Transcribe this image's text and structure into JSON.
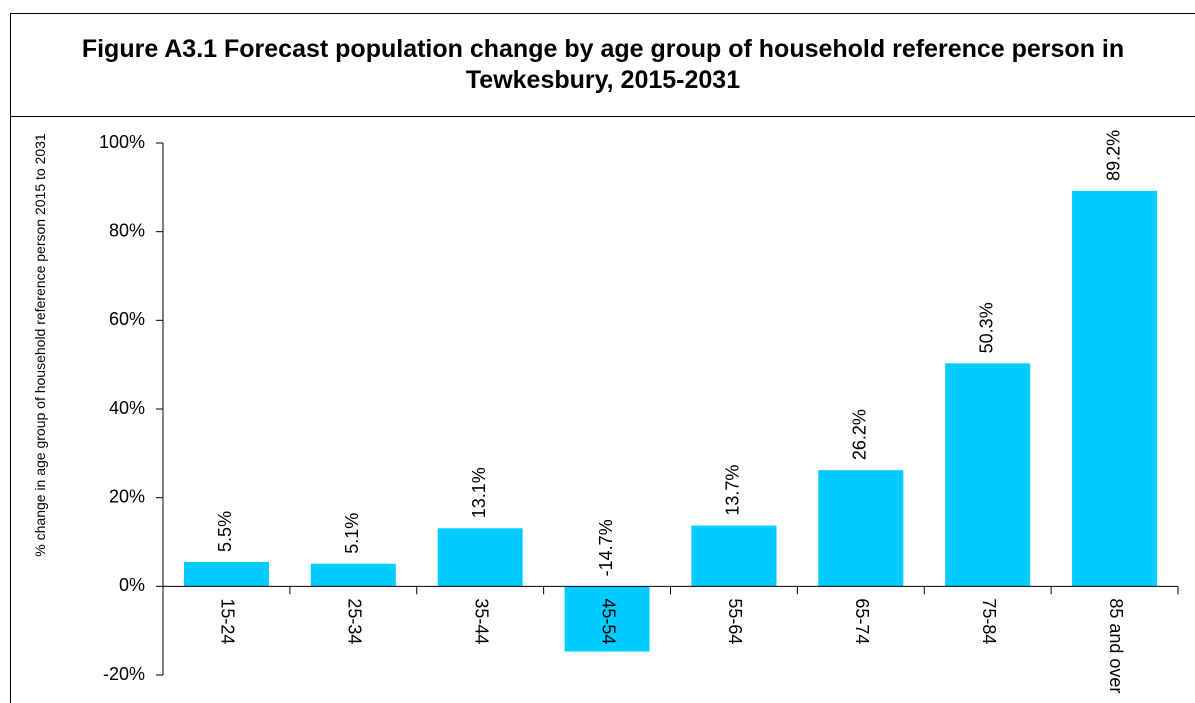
{
  "chart_data": {
    "type": "bar",
    "title": "Figure A3.1 Forecast population change by age group of household reference person in Tewkesbury, 2015-2031",
    "y_label": "% change in age group of household reference person 2015 to 2031",
    "categories": [
      "15-24",
      "25-34",
      "35-44",
      "45-54",
      "55-64",
      "65-74",
      "75-84",
      "85 and over"
    ],
    "values": [
      5.5,
      5.1,
      13.1,
      -14.7,
      13.7,
      26.2,
      50.3,
      89.2
    ],
    "value_labels": [
      "5.5%",
      "5.1%",
      "13.1%",
      "-14.7%",
      "13.7%",
      "26.2%",
      "50.3%",
      "89.2%"
    ],
    "color": "#00ccff",
    "ylim": [
      -20,
      100
    ],
    "yticks": [
      {
        "value": -20,
        "label": "-20%"
      },
      {
        "value": 0,
        "label": "0%"
      },
      {
        "value": 20,
        "label": "20%"
      },
      {
        "value": 40,
        "label": "40%"
      },
      {
        "value": 60,
        "label": "60%"
      },
      {
        "value": 80,
        "label": "80%"
      },
      {
        "value": 100,
        "label": "100%"
      }
    ],
    "grid": false
  }
}
